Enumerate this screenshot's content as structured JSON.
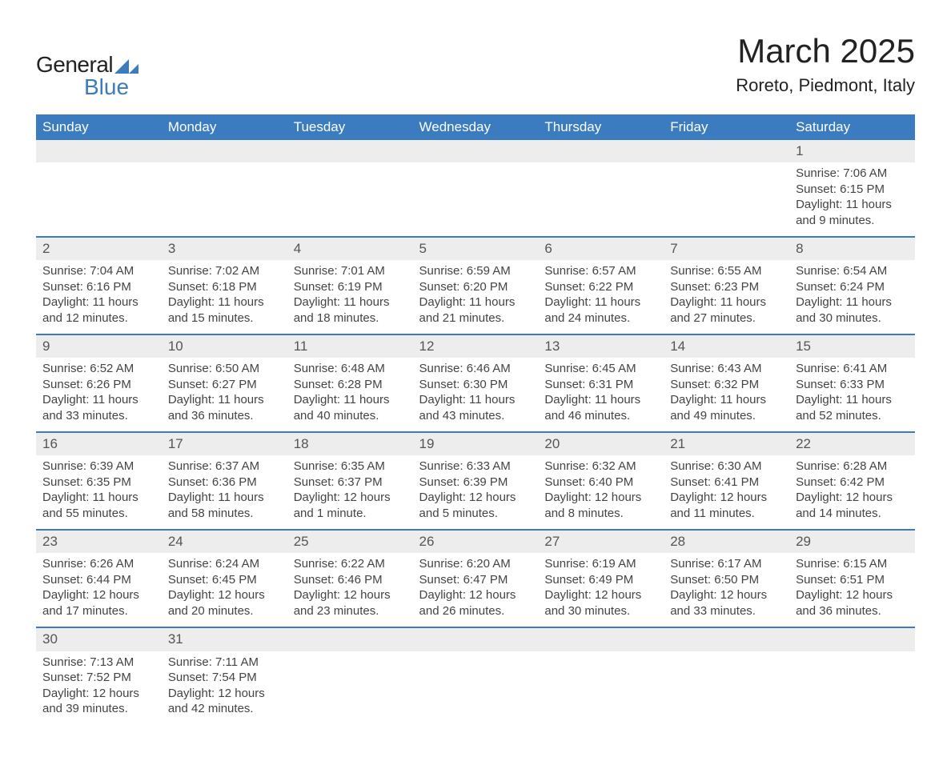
{
  "brand": {
    "name1": "General",
    "name2": "Blue",
    "logo_color": "#3a7cbf"
  },
  "title": "March 2025",
  "location": "Roreto, Piedmont, Italy",
  "colors": {
    "header_bg": "#3a7cbf",
    "header_text": "#ffffff",
    "daynum_bg": "#ededed",
    "row_border": "#3a7cbf",
    "body_text": "#444444"
  },
  "day_names": [
    "Sunday",
    "Monday",
    "Tuesday",
    "Wednesday",
    "Thursday",
    "Friday",
    "Saturday"
  ],
  "weeks": [
    [
      null,
      null,
      null,
      null,
      null,
      null,
      {
        "n": "1",
        "sr": "Sunrise: 7:06 AM",
        "ss": "Sunset: 6:15 PM",
        "d1": "Daylight: 11 hours",
        "d2": "and 9 minutes."
      }
    ],
    [
      {
        "n": "2",
        "sr": "Sunrise: 7:04 AM",
        "ss": "Sunset: 6:16 PM",
        "d1": "Daylight: 11 hours",
        "d2": "and 12 minutes."
      },
      {
        "n": "3",
        "sr": "Sunrise: 7:02 AM",
        "ss": "Sunset: 6:18 PM",
        "d1": "Daylight: 11 hours",
        "d2": "and 15 minutes."
      },
      {
        "n": "4",
        "sr": "Sunrise: 7:01 AM",
        "ss": "Sunset: 6:19 PM",
        "d1": "Daylight: 11 hours",
        "d2": "and 18 minutes."
      },
      {
        "n": "5",
        "sr": "Sunrise: 6:59 AM",
        "ss": "Sunset: 6:20 PM",
        "d1": "Daylight: 11 hours",
        "d2": "and 21 minutes."
      },
      {
        "n": "6",
        "sr": "Sunrise: 6:57 AM",
        "ss": "Sunset: 6:22 PM",
        "d1": "Daylight: 11 hours",
        "d2": "and 24 minutes."
      },
      {
        "n": "7",
        "sr": "Sunrise: 6:55 AM",
        "ss": "Sunset: 6:23 PM",
        "d1": "Daylight: 11 hours",
        "d2": "and 27 minutes."
      },
      {
        "n": "8",
        "sr": "Sunrise: 6:54 AM",
        "ss": "Sunset: 6:24 PM",
        "d1": "Daylight: 11 hours",
        "d2": "and 30 minutes."
      }
    ],
    [
      {
        "n": "9",
        "sr": "Sunrise: 6:52 AM",
        "ss": "Sunset: 6:26 PM",
        "d1": "Daylight: 11 hours",
        "d2": "and 33 minutes."
      },
      {
        "n": "10",
        "sr": "Sunrise: 6:50 AM",
        "ss": "Sunset: 6:27 PM",
        "d1": "Daylight: 11 hours",
        "d2": "and 36 minutes."
      },
      {
        "n": "11",
        "sr": "Sunrise: 6:48 AM",
        "ss": "Sunset: 6:28 PM",
        "d1": "Daylight: 11 hours",
        "d2": "and 40 minutes."
      },
      {
        "n": "12",
        "sr": "Sunrise: 6:46 AM",
        "ss": "Sunset: 6:30 PM",
        "d1": "Daylight: 11 hours",
        "d2": "and 43 minutes."
      },
      {
        "n": "13",
        "sr": "Sunrise: 6:45 AM",
        "ss": "Sunset: 6:31 PM",
        "d1": "Daylight: 11 hours",
        "d2": "and 46 minutes."
      },
      {
        "n": "14",
        "sr": "Sunrise: 6:43 AM",
        "ss": "Sunset: 6:32 PM",
        "d1": "Daylight: 11 hours",
        "d2": "and 49 minutes."
      },
      {
        "n": "15",
        "sr": "Sunrise: 6:41 AM",
        "ss": "Sunset: 6:33 PM",
        "d1": "Daylight: 11 hours",
        "d2": "and 52 minutes."
      }
    ],
    [
      {
        "n": "16",
        "sr": "Sunrise: 6:39 AM",
        "ss": "Sunset: 6:35 PM",
        "d1": "Daylight: 11 hours",
        "d2": "and 55 minutes."
      },
      {
        "n": "17",
        "sr": "Sunrise: 6:37 AM",
        "ss": "Sunset: 6:36 PM",
        "d1": "Daylight: 11 hours",
        "d2": "and 58 minutes."
      },
      {
        "n": "18",
        "sr": "Sunrise: 6:35 AM",
        "ss": "Sunset: 6:37 PM",
        "d1": "Daylight: 12 hours",
        "d2": "and 1 minute."
      },
      {
        "n": "19",
        "sr": "Sunrise: 6:33 AM",
        "ss": "Sunset: 6:39 PM",
        "d1": "Daylight: 12 hours",
        "d2": "and 5 minutes."
      },
      {
        "n": "20",
        "sr": "Sunrise: 6:32 AM",
        "ss": "Sunset: 6:40 PM",
        "d1": "Daylight: 12 hours",
        "d2": "and 8 minutes."
      },
      {
        "n": "21",
        "sr": "Sunrise: 6:30 AM",
        "ss": "Sunset: 6:41 PM",
        "d1": "Daylight: 12 hours",
        "d2": "and 11 minutes."
      },
      {
        "n": "22",
        "sr": "Sunrise: 6:28 AM",
        "ss": "Sunset: 6:42 PM",
        "d1": "Daylight: 12 hours",
        "d2": "and 14 minutes."
      }
    ],
    [
      {
        "n": "23",
        "sr": "Sunrise: 6:26 AM",
        "ss": "Sunset: 6:44 PM",
        "d1": "Daylight: 12 hours",
        "d2": "and 17 minutes."
      },
      {
        "n": "24",
        "sr": "Sunrise: 6:24 AM",
        "ss": "Sunset: 6:45 PM",
        "d1": "Daylight: 12 hours",
        "d2": "and 20 minutes."
      },
      {
        "n": "25",
        "sr": "Sunrise: 6:22 AM",
        "ss": "Sunset: 6:46 PM",
        "d1": "Daylight: 12 hours",
        "d2": "and 23 minutes."
      },
      {
        "n": "26",
        "sr": "Sunrise: 6:20 AM",
        "ss": "Sunset: 6:47 PM",
        "d1": "Daylight: 12 hours",
        "d2": "and 26 minutes."
      },
      {
        "n": "27",
        "sr": "Sunrise: 6:19 AM",
        "ss": "Sunset: 6:49 PM",
        "d1": "Daylight: 12 hours",
        "d2": "and 30 minutes."
      },
      {
        "n": "28",
        "sr": "Sunrise: 6:17 AM",
        "ss": "Sunset: 6:50 PM",
        "d1": "Daylight: 12 hours",
        "d2": "and 33 minutes."
      },
      {
        "n": "29",
        "sr": "Sunrise: 6:15 AM",
        "ss": "Sunset: 6:51 PM",
        "d1": "Daylight: 12 hours",
        "d2": "and 36 minutes."
      }
    ],
    [
      {
        "n": "30",
        "sr": "Sunrise: 7:13 AM",
        "ss": "Sunset: 7:52 PM",
        "d1": "Daylight: 12 hours",
        "d2": "and 39 minutes."
      },
      {
        "n": "31",
        "sr": "Sunrise: 7:11 AM",
        "ss": "Sunset: 7:54 PM",
        "d1": "Daylight: 12 hours",
        "d2": "and 42 minutes."
      },
      null,
      null,
      null,
      null,
      null
    ]
  ]
}
